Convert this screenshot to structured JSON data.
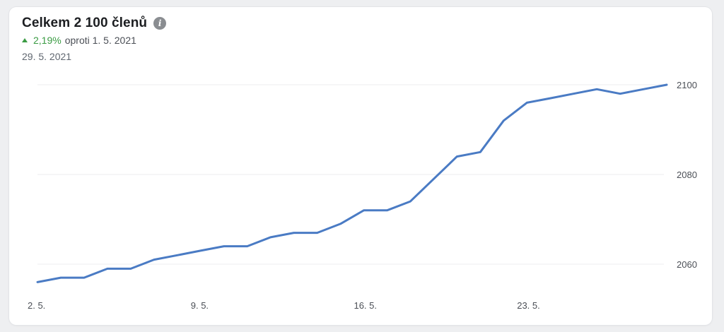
{
  "header": {
    "title": "Celkem 2 100 členů",
    "info_icon": "info-icon",
    "change_icon": "up-arrow-icon",
    "change_percent": "2,19%",
    "change_compare": "oproti 1. 5. 2021",
    "date": "29. 5. 2021"
  },
  "colors": {
    "line": "#4a7bc4",
    "positive": "#3a9b43",
    "grid": "#ecedef"
  },
  "chart_data": {
    "type": "line",
    "title": "",
    "xlabel": "",
    "ylabel": "",
    "x": [
      "2. 5.",
      "3. 5.",
      "4. 5.",
      "5. 5.",
      "6. 5.",
      "7. 5.",
      "8. 5.",
      "9. 5.",
      "10. 5.",
      "11. 5.",
      "12. 5.",
      "13. 5.",
      "14. 5.",
      "15. 5.",
      "16. 5.",
      "17. 5.",
      "18. 5.",
      "19. 5.",
      "20. 5.",
      "21. 5.",
      "22. 5.",
      "23. 5.",
      "24. 5.",
      "25. 5.",
      "26. 5.",
      "27. 5.",
      "28. 5.",
      "29. 5."
    ],
    "series": [
      {
        "values": [
          2056,
          2057,
          2057,
          2059,
          2059,
          2061,
          2062,
          2063,
          2064,
          2064,
          2066,
          2067,
          2067,
          2069,
          2072,
          2072,
          2074,
          2079,
          2084,
          2085,
          2092,
          2096,
          2097,
          2098,
          2099,
          2098,
          2099,
          2100
        ]
      }
    ],
    "x_ticks": [
      "2. 5.",
      "9. 5.",
      "16. 5.",
      "23. 5."
    ],
    "y_ticks": [
      2060,
      2080,
      2100
    ],
    "ylim": [
      2052,
      2100
    ],
    "y_axis_side": "right",
    "grid": true,
    "legend": "none"
  }
}
